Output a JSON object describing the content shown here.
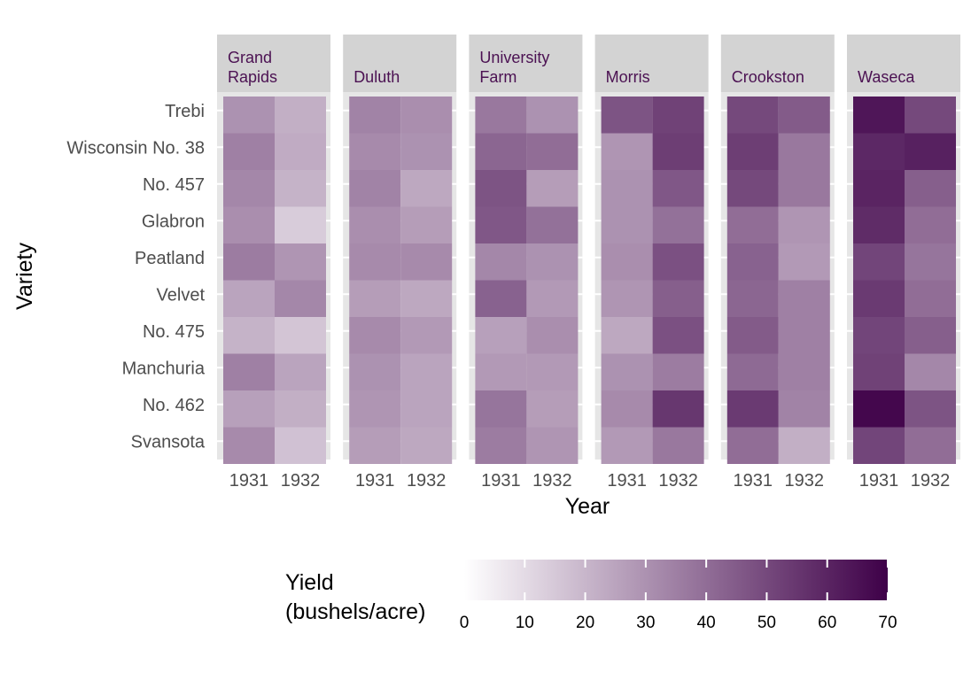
{
  "colors": {
    "panel_background": "#e6e6e6",
    "strip_background": "#d3d3d3",
    "grid": "#ffffff",
    "strip_text": "#4b1152",
    "tick_text": "#4d4d4d",
    "scale_low": "#ffffff",
    "scale_high": "#3e0048"
  },
  "chart_data": {
    "type": "heatmap",
    "facet_by": "site",
    "x": [
      "1931",
      "1932"
    ],
    "xlabel": "Year",
    "ylabel": "Variety",
    "varieties": [
      "Trebi",
      "Wisconsin No. 38",
      "No. 457",
      "Glabron",
      "Peatland",
      "Velvet",
      "No. 475",
      "Manchuria",
      "No. 462",
      "Svansota"
    ],
    "facets": [
      {
        "name": "Grand Rapids",
        "lines": [
          "Grand",
          "Rapids"
        ],
        "values": [
          [
            30,
            22
          ],
          [
            35,
            23
          ],
          [
            33,
            21
          ],
          [
            31,
            14
          ],
          [
            36,
            29
          ],
          [
            25,
            33
          ],
          [
            21,
            16
          ],
          [
            35,
            25
          ],
          [
            26,
            22
          ],
          [
            32,
            17
          ]
        ]
      },
      {
        "name": "Duluth",
        "lines": [
          "Duluth"
        ],
        "values": [
          [
            34,
            31
          ],
          [
            32,
            30
          ],
          [
            34,
            24
          ],
          [
            31,
            27
          ],
          [
            32,
            32
          ],
          [
            27,
            24
          ],
          [
            32,
            28
          ],
          [
            30,
            25
          ],
          [
            29,
            25
          ],
          [
            27,
            24
          ]
        ]
      },
      {
        "name": "University Farm",
        "lines": [
          "University",
          "Farm"
        ],
        "values": [
          [
            37,
            30
          ],
          [
            42,
            40
          ],
          [
            47,
            27
          ],
          [
            46,
            39
          ],
          [
            33,
            30
          ],
          [
            43,
            28
          ],
          [
            26,
            31
          ],
          [
            28,
            28
          ],
          [
            38,
            27
          ],
          [
            36,
            29
          ]
        ]
      },
      {
        "name": "Morris",
        "lines": [
          "Morris"
        ],
        "values": [
          [
            47,
            52
          ],
          [
            29,
            53
          ],
          [
            30,
            46
          ],
          [
            30,
            39
          ],
          [
            31,
            48
          ],
          [
            29,
            44
          ],
          [
            24,
            48
          ],
          [
            30,
            36
          ],
          [
            32,
            55
          ],
          [
            28,
            37
          ]
        ]
      },
      {
        "name": "Crookston",
        "lines": [
          "Crookston"
        ],
        "values": [
          [
            50,
            45
          ],
          [
            53,
            37
          ],
          [
            50,
            37
          ],
          [
            40,
            29
          ],
          [
            43,
            28
          ],
          [
            42,
            35
          ],
          [
            45,
            35
          ],
          [
            41,
            35
          ],
          [
            54,
            34
          ],
          [
            40,
            22
          ]
        ]
      },
      {
        "name": "Waseca",
        "lines": [
          "Waseca"
        ],
        "values": [
          [
            64,
            50
          ],
          [
            59,
            61
          ],
          [
            60,
            44
          ],
          [
            58,
            40
          ],
          [
            51,
            38
          ],
          [
            54,
            40
          ],
          [
            51,
            44
          ],
          [
            52,
            33
          ],
          [
            68,
            47
          ],
          [
            51,
            40
          ]
        ]
      }
    ],
    "legend": {
      "title_lines": [
        "Yield",
        "(bushels/acre)"
      ],
      "min": 0,
      "max": 70,
      "breaks": [
        "0",
        "10",
        "20",
        "30",
        "40",
        "50",
        "60",
        "70"
      ],
      "position": "bottom"
    }
  }
}
